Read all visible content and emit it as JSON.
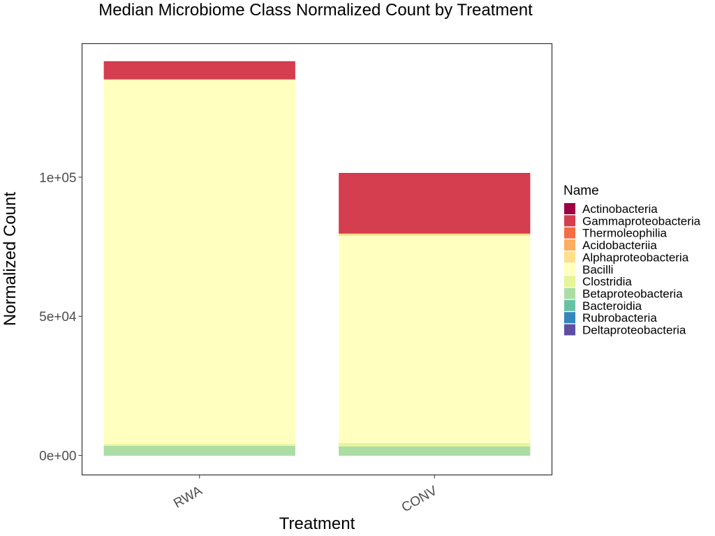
{
  "chart_data": {
    "type": "bar",
    "stacked": true,
    "title": "Median Microbiome Class Normalized Count by Treatment",
    "xlabel": "Treatment",
    "ylabel": "Normalized Count",
    "categories": [
      "RWA",
      "CONV"
    ],
    "y_ticks": [
      {
        "value": 0,
        "label": "0e+00"
      },
      {
        "value": 50000,
        "label": "5e+04"
      },
      {
        "value": 100000,
        "label": "1e+05"
      }
    ],
    "ylim": [
      -7000,
      148000
    ],
    "legend": {
      "title": "Name",
      "placement": "right"
    },
    "series": [
      {
        "name": "Actinobacteria",
        "color": "#9E0142",
        "values": [
          150,
          150
        ]
      },
      {
        "name": "Gammaproteobacteria",
        "color": "#D53E4F",
        "values": [
          6300,
          21600
        ]
      },
      {
        "name": "Thermoleophilia",
        "color": "#F46D43",
        "values": [
          50,
          50
        ]
      },
      {
        "name": "Acidobacteriia",
        "color": "#FDAE61",
        "values": [
          50,
          50
        ]
      },
      {
        "name": "Alphaproteobacteria",
        "color": "#FEE08B",
        "values": [
          200,
          700
        ]
      },
      {
        "name": "Bacilli",
        "color": "#FFFFBF",
        "values": [
          130800,
          74500
        ]
      },
      {
        "name": "Clostridia",
        "color": "#E6F598",
        "values": [
          700,
          1200
        ]
      },
      {
        "name": "Betaproteobacteria",
        "color": "#ABDDA4",
        "values": [
          3200,
          3100
        ]
      },
      {
        "name": "Bacteroidia",
        "color": "#66C2A5",
        "values": [
          100,
          50
        ]
      },
      {
        "name": "Rubrobacteria",
        "color": "#3288BD",
        "values": [
          50,
          50
        ]
      },
      {
        "name": "Deltaproteobacteria",
        "color": "#5E4FA2",
        "values": [
          50,
          50
        ]
      }
    ]
  }
}
